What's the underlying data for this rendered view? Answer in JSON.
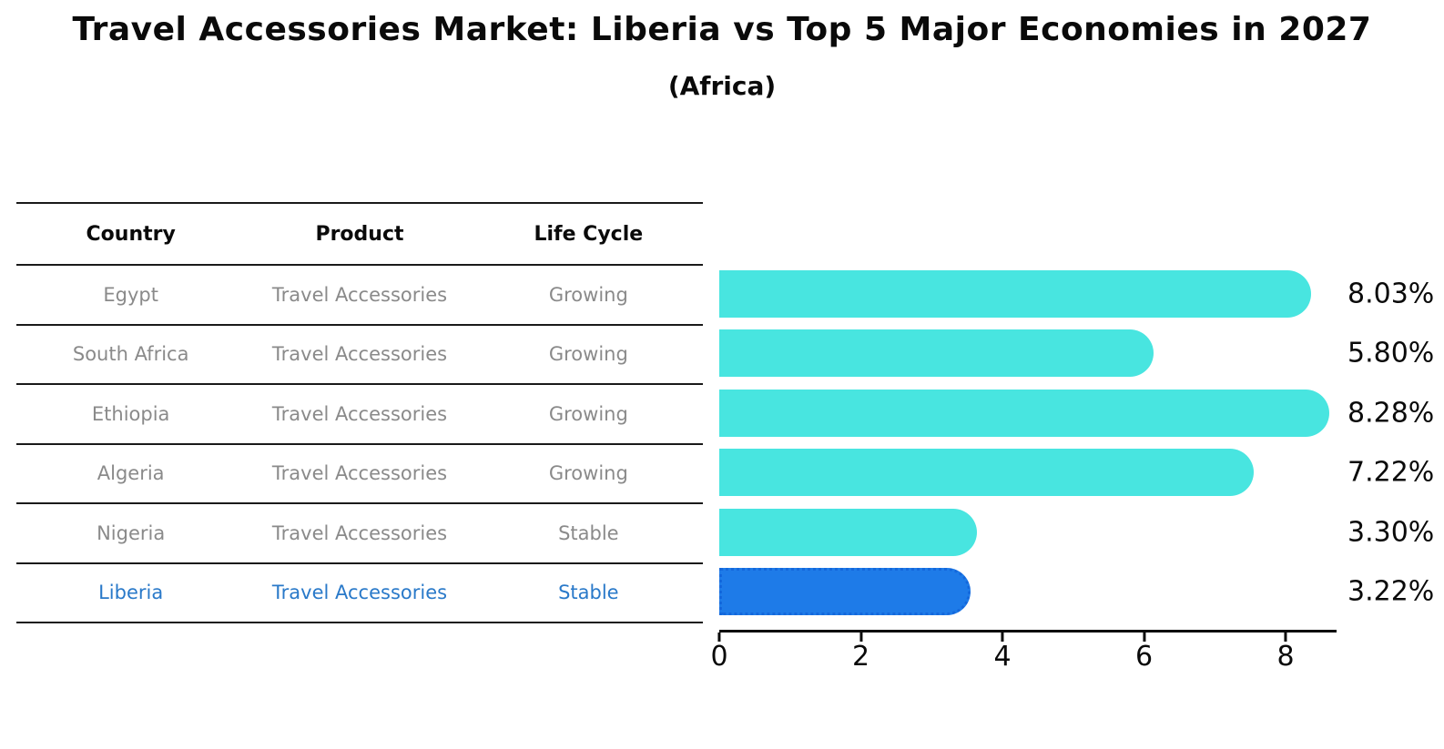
{
  "title": "Travel Accessories Market: Liberia vs Top 5 Major Economies in 2027",
  "subtitle": "(Africa)",
  "table": {
    "headers": [
      "Country",
      "Product",
      "Life Cycle"
    ],
    "rows": [
      {
        "country": "Egypt",
        "product": "Travel Accessories",
        "life_cycle": "Growing"
      },
      {
        "country": "South Africa",
        "product": "Travel Accessories",
        "life_cycle": "Growing"
      },
      {
        "country": "Ethiopia",
        "product": "Travel Accessories",
        "life_cycle": "Growing"
      },
      {
        "country": "Algeria",
        "product": "Travel Accessories",
        "life_cycle": "Growing"
      },
      {
        "country": "Nigeria",
        "product": "Travel Accessories",
        "life_cycle": "Stable"
      },
      {
        "country": "Liberia",
        "product": "Travel Accessories",
        "life_cycle": "Stable"
      }
    ],
    "highlighted_row": "Liberia"
  },
  "chart_data": {
    "type": "bar",
    "orientation": "horizontal",
    "categories": [
      "Egypt",
      "South Africa",
      "Ethiopia",
      "Algeria",
      "Nigeria",
      "Liberia"
    ],
    "values": [
      8.03,
      5.8,
      8.28,
      7.22,
      3.3,
      3.22
    ],
    "labels": [
      "8.03%",
      "5.80%",
      "8.28%",
      "7.22%",
      "3.30%",
      "3.22%"
    ],
    "value_unit": "%",
    "xticks": [
      "0",
      "2",
      "4",
      "6",
      "8"
    ],
    "xlim": [
      0,
      8.72
    ],
    "highlight_index": 5,
    "grid": false,
    "legend": false,
    "bar_cap_style": "rounded-right"
  },
  "colors": {
    "bar-color": "#48E5E0",
    "hl-color": "#1E7BE8",
    "hl-border": "#1468DC",
    "hl-text": "#2979C9",
    "muted-text": "#8A8A8A",
    "ink": "#0A0A0A"
  }
}
